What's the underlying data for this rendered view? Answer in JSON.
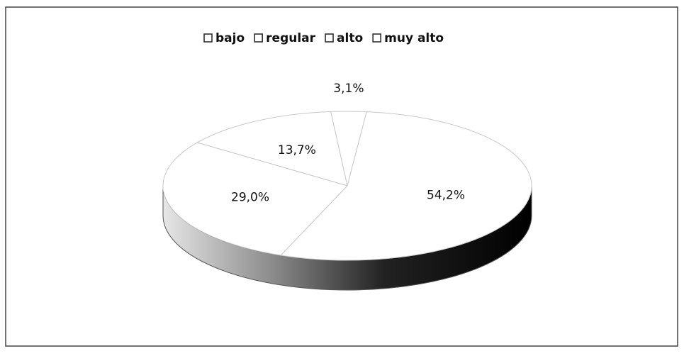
{
  "chart_data": {
    "type": "pie3d",
    "categories": [
      "bajo",
      "regular",
      "alto",
      "muy alto"
    ],
    "values": [
      3.1,
      13.7,
      29.0,
      54.2
    ],
    "value_labels": [
      "3,1%",
      "13,7%",
      "29,0%",
      "54,2%"
    ],
    "colors": [
      "#ffffff",
      "#ffffff",
      "#ffffff",
      "#ffffff"
    ],
    "legend": "top"
  }
}
